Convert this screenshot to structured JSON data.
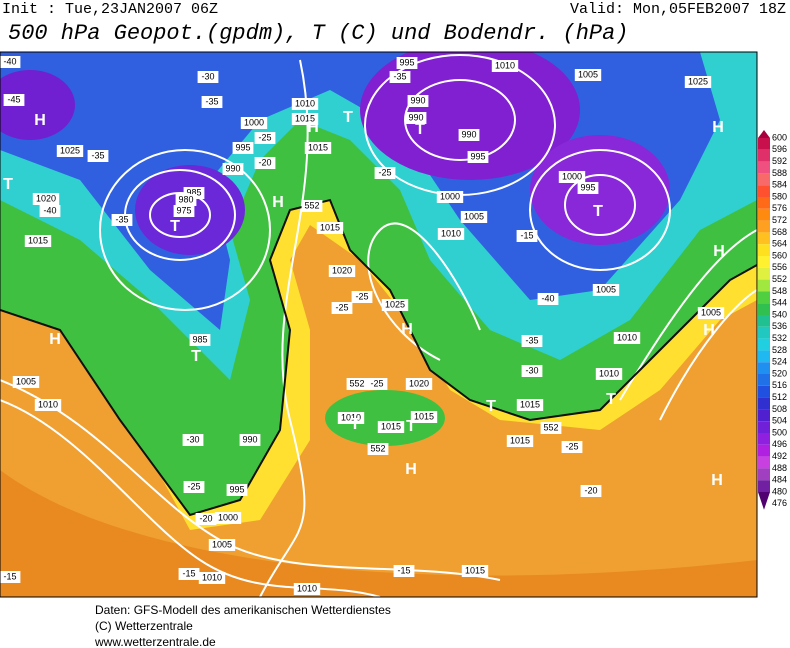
{
  "header": {
    "init": "Init : Tue,23JAN2007 06Z",
    "valid": "Valid: Mon,05FEB2007 18Z",
    "title": "500 hPa Geopot.(gpdm), T (C) und Bodendr. (hPa)"
  },
  "legend": {
    "levels": [
      600,
      596,
      592,
      588,
      584,
      580,
      576,
      572,
      568,
      564,
      560,
      556,
      552,
      548,
      544,
      540,
      536,
      532,
      528,
      524,
      520,
      516,
      512,
      508,
      504,
      500,
      496,
      492,
      488,
      484,
      480,
      476
    ],
    "colors": [
      "#a8003c",
      "#c8104c",
      "#e0306a",
      "#f05080",
      "#f86a6a",
      "#ff5030",
      "#ff6a18",
      "#ff8a10",
      "#ffa020",
      "#ffc020",
      "#ffe020",
      "#fff030",
      "#e0f040",
      "#a0e840",
      "#50d040",
      "#30c050",
      "#20c090",
      "#20c8c0",
      "#20d0e0",
      "#20b8f0",
      "#2090f0",
      "#2070e8",
      "#2050e0",
      "#3030d0",
      "#5020d0",
      "#7020d8",
      "#9020e0",
      "#b020e0",
      "#c840e0",
      "#a040c0",
      "#7020a0",
      "#500070"
    ]
  },
  "map_labels": [
    "-40",
    "-45",
    "H",
    "1025",
    "-35",
    "T",
    "1020",
    "-40",
    "-35",
    "985",
    "980",
    "975",
    "T",
    "1015",
    "-30",
    "-35",
    "1000",
    "-25",
    "-20",
    "995",
    "990",
    "1010",
    "1015",
    "H",
    "T",
    "1015",
    "H",
    "552",
    "995",
    "-35",
    "990",
    "990",
    "T",
    "990",
    "995",
    "1010",
    "1005",
    "1025",
    "H",
    "1000",
    "995",
    "T",
    "1000",
    "-25",
    "1005",
    "1010",
    "1015",
    "-15",
    "H",
    "1020",
    "-25",
    "-25",
    "1025",
    "H",
    "-40",
    "1005",
    "1005",
    "H",
    "-35",
    "1010",
    "H",
    "985",
    "T",
    "1005",
    "1010",
    "-25",
    "1020",
    "552",
    "-30",
    "1010",
    "T",
    "1015",
    "T",
    "1010",
    "T",
    "1015",
    "1015",
    "T",
    "552",
    "-30",
    "990",
    "1015",
    "-25",
    "552",
    "H",
    "H",
    "-25",
    "995",
    "-20",
    "-20",
    "1000",
    "1005",
    "-15",
    "-15",
    "1010",
    "-15",
    "1015",
    "1010"
  ],
  "footer": [
    "Daten: GFS-Modell des amerikanischen Wetterdienstes",
    "(C) Wetterzentrale",
    "www.wetterzentrale.de"
  ]
}
